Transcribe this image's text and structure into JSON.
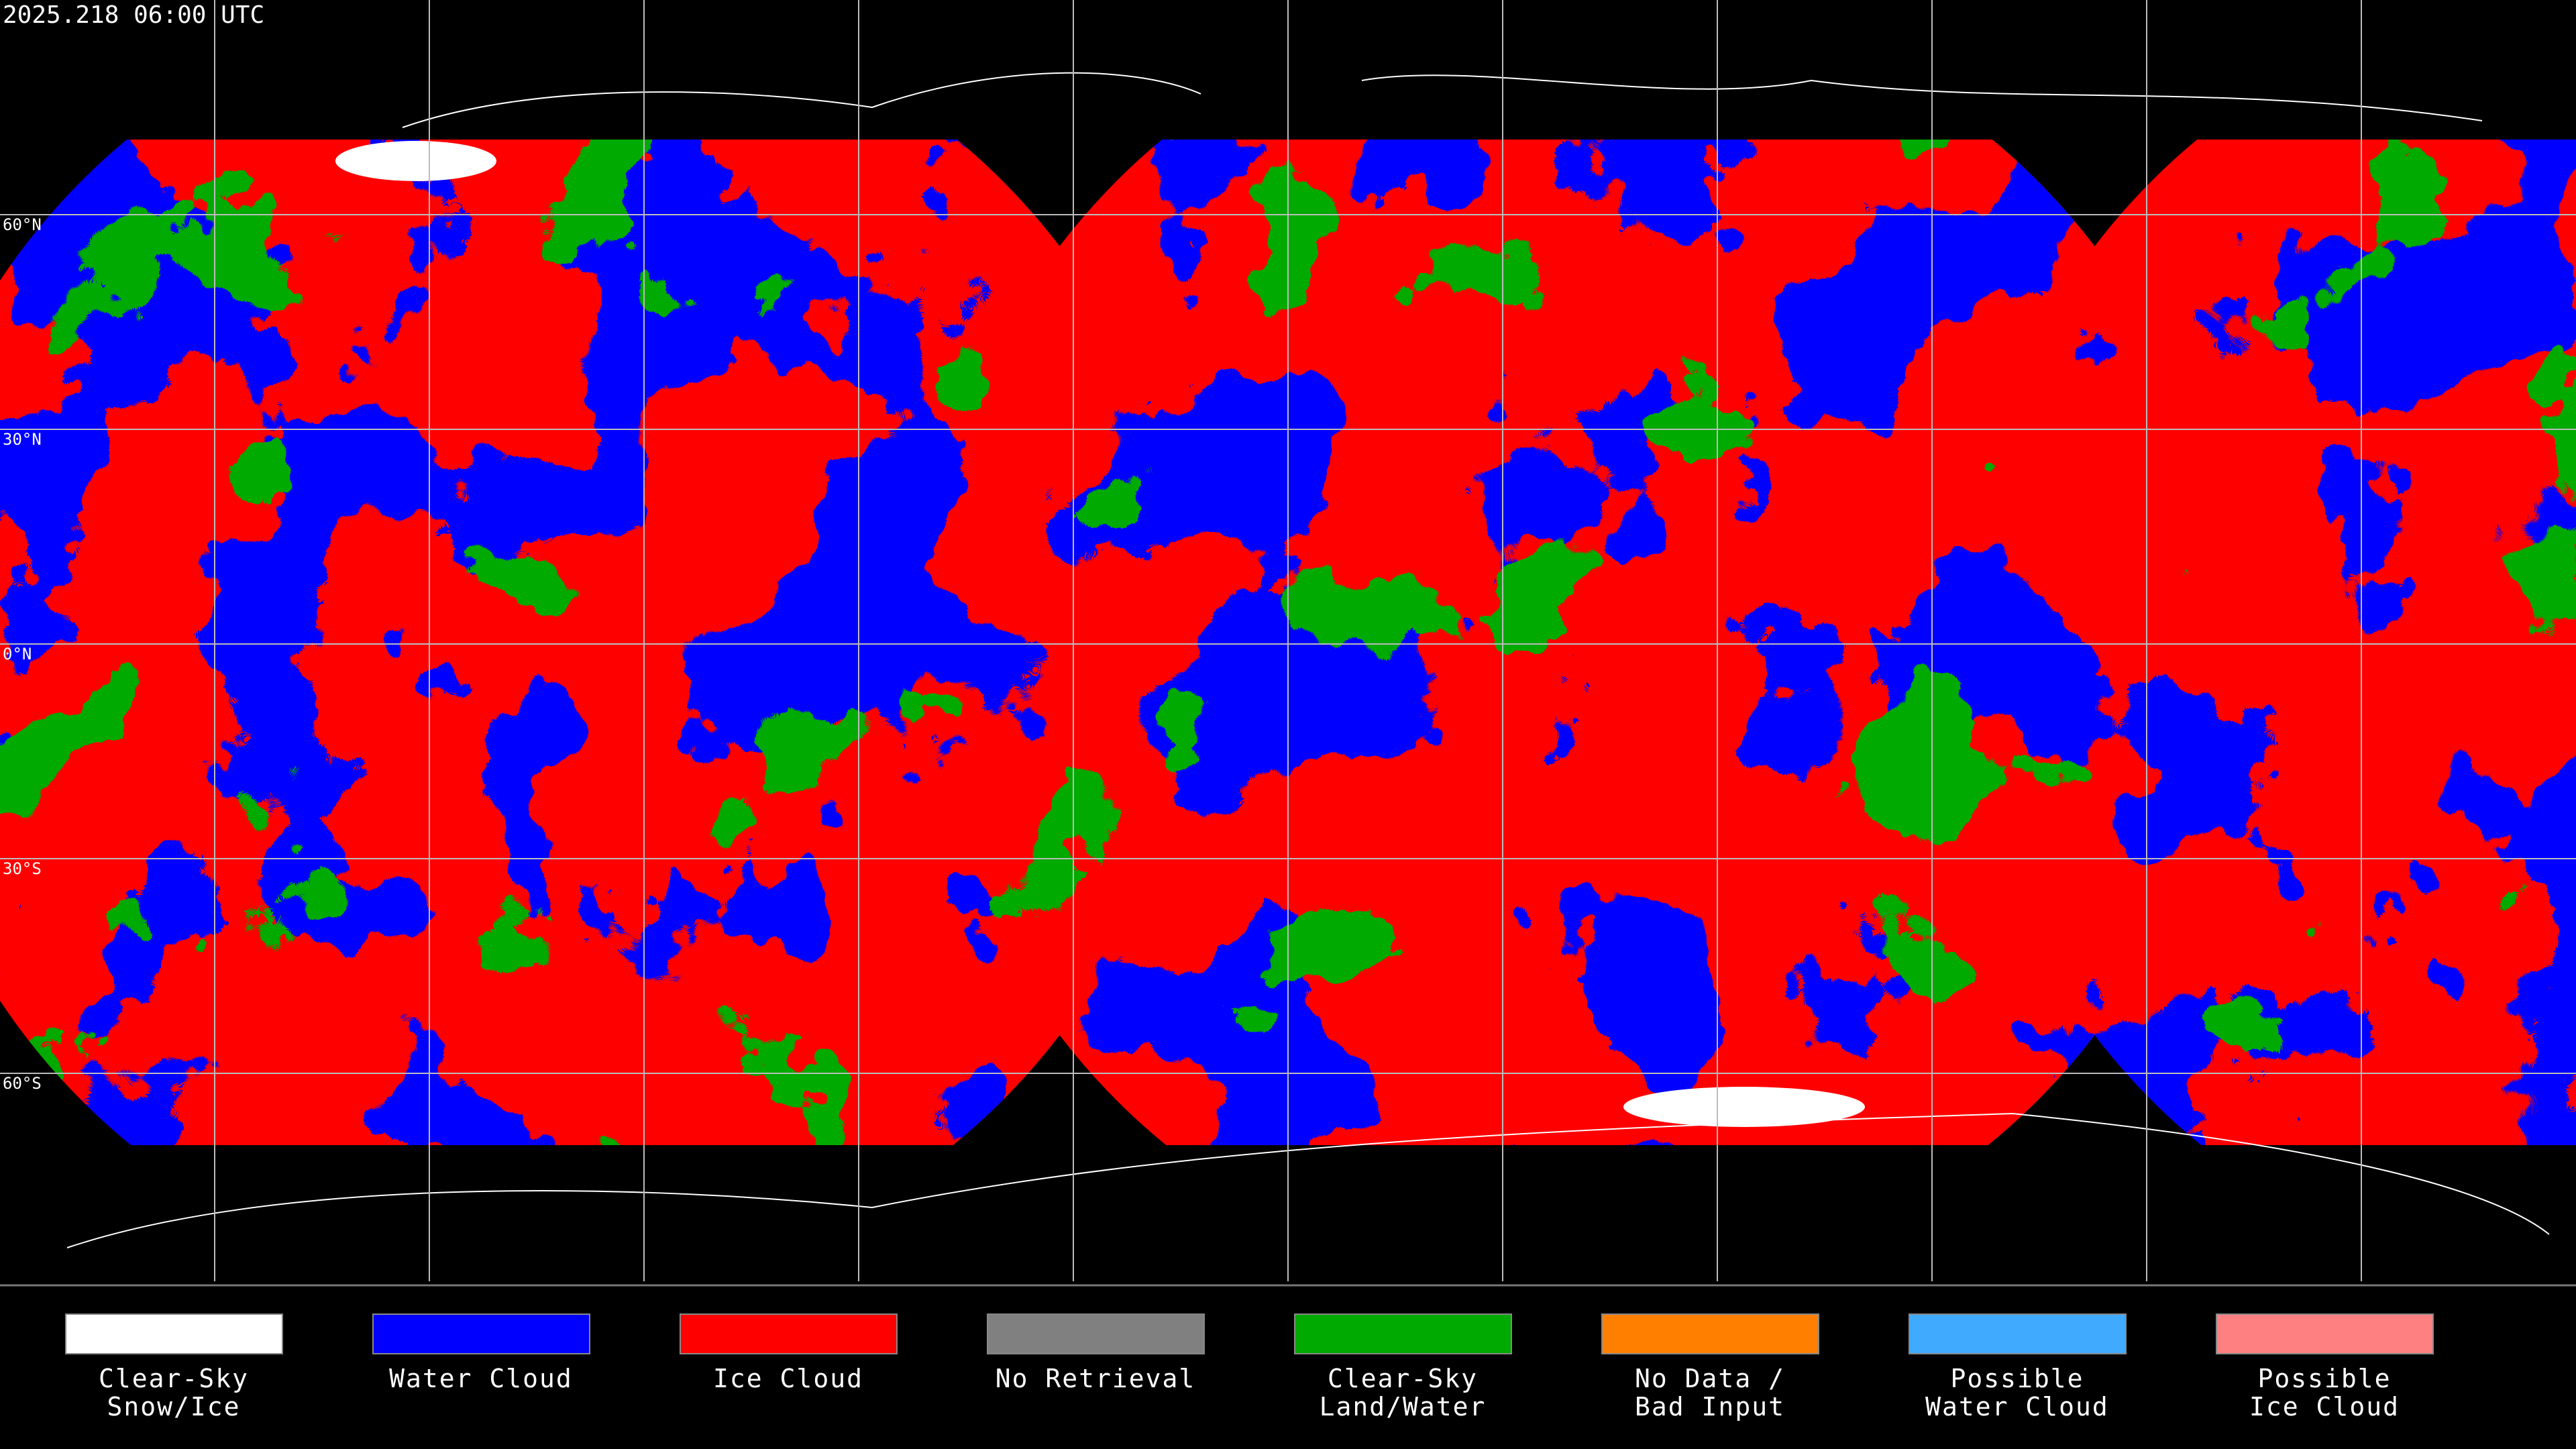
{
  "header": {
    "timestamp": "2025.218 06:00 UTC"
  },
  "latitude_labels": [
    "60°N",
    "30°N",
    "0°N",
    "30°S",
    "60°S"
  ],
  "legend": [
    {
      "lines": [
        "Clear-Sky",
        "Snow/Ice"
      ],
      "color": "#ffffff"
    },
    {
      "lines": [
        "Water Cloud"
      ],
      "color": "#0000ff"
    },
    {
      "lines": [
        "Ice Cloud"
      ],
      "color": "#ff0000"
    },
    {
      "lines": [
        "No Retrieval"
      ],
      "color": "#808080"
    },
    {
      "lines": [
        "Clear-Sky",
        "Land/Water"
      ],
      "color": "#00aa00"
    },
    {
      "lines": [
        "No Data /",
        "Bad Input"
      ],
      "color": "#ff8000"
    },
    {
      "lines": [
        "Possible",
        "Water Cloud"
      ],
      "color": "#40aaff"
    },
    {
      "lines": [
        "Possible",
        "Ice Cloud"
      ],
      "color": "#ff8080"
    }
  ]
}
